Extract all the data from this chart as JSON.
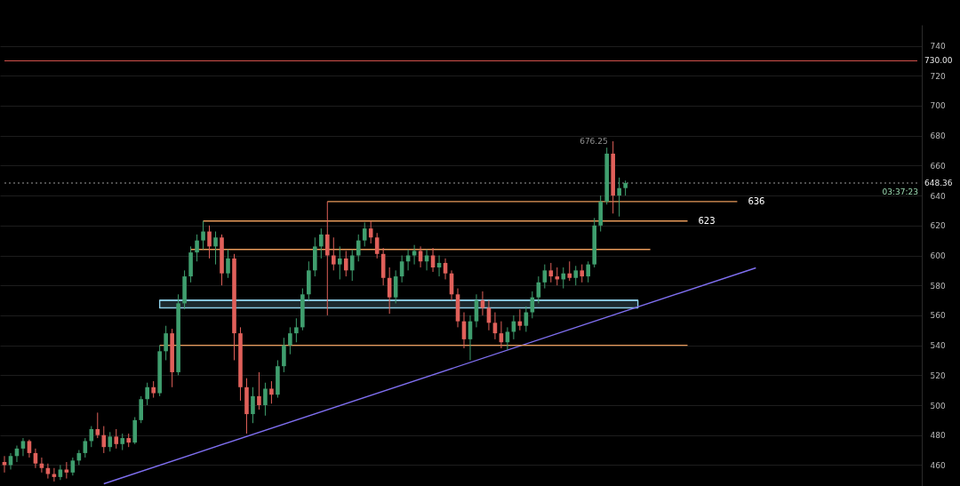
{
  "chart_data": {
    "type": "candlestick",
    "categories": [
      null,
      null,
      null,
      null,
      null,
      null,
      null,
      null,
      null,
      null,
      null,
      null,
      null,
      null,
      null,
      null,
      null,
      null,
      null,
      null,
      null,
      null,
      null,
      null,
      null,
      null,
      null,
      null,
      null,
      null,
      null,
      null,
      null,
      null,
      null,
      null,
      null,
      null,
      null,
      null,
      null,
      null,
      null,
      null,
      null,
      null,
      null,
      null,
      null,
      null,
      null,
      null,
      null,
      null,
      null,
      null,
      null,
      null,
      null,
      null,
      null,
      null,
      null,
      null,
      null,
      null,
      null,
      null,
      null,
      null,
      null,
      null,
      null,
      null,
      null,
      null,
      null,
      null,
      null,
      null,
      null,
      null,
      null,
      null,
      null,
      null,
      null,
      null,
      null,
      null,
      null,
      null,
      null,
      null,
      null,
      null,
      null,
      null,
      null,
      null,
      null,
      null,
      null,
      null,
      null,
      null,
      null,
      null,
      null,
      null,
      null,
      null,
      null,
      null,
      null,
      null,
      null,
      null,
      null,
      null,
      null,
      null,
      null,
      null,
      null,
      null,
      null,
      null,
      null,
      null,
      null,
      null,
      null,
      null,
      null,
      null,
      null,
      null,
      null,
      null,
      null,
      null,
      null,
      null,
      null,
      null,
      null,
      null
    ],
    "ohlc": [
      [
        462,
        466,
        455,
        460
      ],
      [
        460,
        468,
        457,
        466
      ],
      [
        466,
        473,
        462,
        471
      ],
      [
        471,
        478,
        466,
        476
      ],
      [
        476,
        477,
        465,
        468
      ],
      [
        468,
        471,
        458,
        461
      ],
      [
        461,
        465,
        455,
        458
      ],
      [
        458,
        461,
        451,
        454
      ],
      [
        454,
        458,
        449,
        452
      ],
      [
        452,
        460,
        450,
        457
      ],
      [
        457,
        462,
        451,
        455
      ],
      [
        455,
        465,
        453,
        463
      ],
      [
        463,
        470,
        460,
        468
      ],
      [
        468,
        478,
        465,
        476
      ],
      [
        476,
        486,
        472,
        484
      ],
      [
        484,
        495,
        478,
        480
      ],
      [
        480,
        486,
        468,
        472
      ],
      [
        472,
        482,
        469,
        479
      ],
      [
        479,
        484,
        471,
        474
      ],
      [
        474,
        481,
        470,
        478
      ],
      [
        478,
        481,
        472,
        475
      ],
      [
        475,
        492,
        474,
        490
      ],
      [
        490,
        506,
        488,
        504
      ],
      [
        504,
        515,
        500,
        512
      ],
      [
        512,
        516,
        505,
        508
      ],
      [
        508,
        540,
        506,
        536
      ],
      [
        536,
        553,
        530,
        548
      ],
      [
        548,
        551,
        512,
        522
      ],
      [
        522,
        574,
        520,
        568
      ],
      [
        568,
        590,
        564,
        586
      ],
      [
        586,
        606,
        582,
        602
      ],
      [
        602,
        614,
        596,
        610
      ],
      [
        610,
        623,
        604,
        616
      ],
      [
        616,
        620,
        598,
        606
      ],
      [
        606,
        616,
        594,
        612
      ],
      [
        612,
        614,
        580,
        588
      ],
      [
        588,
        604,
        585,
        598
      ],
      [
        598,
        601,
        530,
        548
      ],
      [
        548,
        552,
        503,
        512
      ],
      [
        512,
        518,
        481,
        494
      ],
      [
        494,
        512,
        488,
        506
      ],
      [
        506,
        522,
        497,
        500
      ],
      [
        500,
        515,
        493,
        511
      ],
      [
        511,
        516,
        501,
        507
      ],
      [
        507,
        530,
        505,
        526
      ],
      [
        526,
        545,
        522,
        540
      ],
      [
        540,
        552,
        534,
        548
      ],
      [
        548,
        558,
        542,
        552
      ],
      [
        552,
        578,
        550,
        574
      ],
      [
        574,
        596,
        570,
        590
      ],
      [
        590,
        612,
        586,
        606
      ],
      [
        606,
        618,
        598,
        614
      ],
      [
        614,
        636,
        560,
        600
      ],
      [
        600,
        612,
        590,
        594
      ],
      [
        594,
        606,
        584,
        598
      ],
      [
        598,
        603,
        586,
        590
      ],
      [
        590,
        604,
        583,
        600
      ],
      [
        600,
        614,
        596,
        610
      ],
      [
        610,
        622,
        606,
        618
      ],
      [
        618,
        623,
        608,
        612
      ],
      [
        612,
        615,
        598,
        601
      ],
      [
        601,
        605,
        580,
        585
      ],
      [
        585,
        592,
        561,
        572
      ],
      [
        572,
        590,
        568,
        586
      ],
      [
        586,
        600,
        582,
        596
      ],
      [
        596,
        604,
        590,
        600
      ],
      [
        600,
        607,
        594,
        603
      ],
      [
        603,
        606,
        592,
        596
      ],
      [
        596,
        604,
        590,
        600
      ],
      [
        600,
        605,
        589,
        592
      ],
      [
        592,
        600,
        586,
        595
      ],
      [
        595,
        598,
        584,
        588
      ],
      [
        588,
        590,
        570,
        574
      ],
      [
        574,
        578,
        552,
        556
      ],
      [
        556,
        562,
        538,
        544
      ],
      [
        544,
        560,
        530,
        556
      ],
      [
        556,
        574,
        552,
        570
      ],
      [
        570,
        576,
        560,
        565
      ],
      [
        565,
        570,
        550,
        555
      ],
      [
        555,
        562,
        544,
        548
      ],
      [
        548,
        556,
        538,
        542
      ],
      [
        542,
        552,
        537,
        549
      ],
      [
        549,
        560,
        544,
        556
      ],
      [
        556,
        564,
        550,
        553
      ],
      [
        553,
        566,
        549,
        562
      ],
      [
        562,
        576,
        558,
        572
      ],
      [
        572,
        586,
        568,
        582
      ],
      [
        582,
        594,
        578,
        590
      ],
      [
        590,
        595,
        582,
        586
      ],
      [
        586,
        592,
        580,
        584
      ],
      [
        584,
        592,
        578,
        588
      ],
      [
        588,
        596,
        583,
        585
      ],
      [
        585,
        593,
        580,
        590
      ],
      [
        590,
        594,
        582,
        586
      ],
      [
        586,
        596,
        582,
        594
      ],
      [
        594,
        625,
        592,
        620
      ],
      [
        620,
        640,
        616,
        636
      ],
      [
        636,
        672,
        634,
        668
      ],
      [
        668,
        676.25,
        628,
        640
      ],
      [
        640,
        652,
        626,
        645
      ],
      [
        645,
        650,
        640,
        648.36
      ],
      null,
      null,
      null,
      null,
      null,
      null,
      null,
      null,
      null,
      null,
      null,
      null,
      null,
      null,
      null,
      null,
      null,
      null,
      null,
      null,
      null,
      null,
      null,
      null,
      null,
      null,
      null,
      null,
      null,
      null,
      null,
      null,
      null,
      null,
      null,
      null,
      null,
      null,
      null,
      null,
      null,
      null,
      null,
      null,
      null,
      null,
      null
    ],
    "colors": [
      "#e0605a",
      "#3f9e6e",
      "#3f9e6e",
      "#3f9e6e",
      "#e0605a",
      "#e0605a",
      "#e0605a",
      "#e0605a",
      "#e0605a",
      "#3f9e6e",
      "#e0605a",
      "#3f9e6e",
      "#3f9e6e",
      "#3f9e6e",
      "#3f9e6e",
      "#e0605a",
      "#e0605a",
      "#3f9e6e",
      "#e0605a",
      "#3f9e6e",
      "#e0605a",
      "#3f9e6e",
      "#3f9e6e",
      "#3f9e6e",
      "#e0605a",
      "#3f9e6e",
      "#3f9e6e",
      "#e0605a",
      "#3f9e6e",
      "#3f9e6e",
      "#3f9e6e",
      "#3f9e6e",
      "#3f9e6e",
      "#e0605a",
      "#3f9e6e",
      "#e0605a",
      "#3f9e6e",
      "#e0605a",
      "#e0605a",
      "#e0605a",
      "#3f9e6e",
      "#e0605a",
      "#3f9e6e",
      "#e0605a",
      "#3f9e6e",
      "#3f9e6e",
      "#3f9e6e",
      "#3f9e6e",
      "#3f9e6e",
      "#3f9e6e",
      "#3f9e6e",
      "#3f9e6e",
      "#e0605a",
      "#e0605a",
      "#3f9e6e",
      "#e0605a",
      "#3f9e6e",
      "#3f9e6e",
      "#3f9e6e",
      "#e0605a",
      "#e0605a",
      "#e0605a",
      "#e0605a",
      "#3f9e6e",
      "#3f9e6e",
      "#3f9e6e",
      "#3f9e6e",
      "#e0605a",
      "#3f9e6e",
      "#e0605a",
      "#3f9e6e",
      "#e0605a",
      "#e0605a",
      "#e0605a",
      "#e0605a",
      "#3f9e6e",
      "#3f9e6e",
      "#e0605a",
      "#e0605a",
      "#e0605a",
      "#e0605a",
      "#3f9e6e",
      "#3f9e6e",
      "#e0605a",
      "#3f9e6e",
      "#3f9e6e",
      "#3f9e6e",
      "#3f9e6e",
      "#e0605a",
      "#e0605a",
      "#3f9e6e",
      "#e0605a",
      "#3f9e6e",
      "#e0605a",
      "#3f9e6e",
      "#3f9e6e",
      "#3f9e6e",
      "#3f9e6e",
      "#e0605a",
      "#3f9e6e",
      "#3f9e6e",
      null,
      null,
      null,
      null,
      null,
      null,
      null,
      null,
      null,
      null,
      null,
      null,
      null,
      null,
      null,
      null,
      null,
      null,
      null,
      null,
      null,
      null,
      null,
      null,
      null,
      null,
      null,
      null,
      null,
      null,
      null,
      null,
      null,
      null,
      null,
      null,
      null,
      null,
      null,
      null,
      null,
      null,
      null,
      null,
      null,
      null,
      null
    ],
    "series": [
      {
        "type": "line",
        "color": "#8ecfe8",
        "values": [
          null,
          null,
          null,
          null,
          null,
          null,
          null,
          null,
          null,
          null,
          null,
          null,
          null,
          null,
          null,
          null,
          null,
          null,
          null,
          null,
          null,
          null,
          null,
          null,
          null,
          570,
          null,
          null,
          null,
          null,
          null,
          null,
          null,
          null,
          null,
          null,
          null,
          null,
          null,
          null,
          null,
          null,
          null,
          null,
          null,
          null,
          null,
          null,
          null,
          null,
          null,
          null,
          null,
          null,
          null,
          null,
          null,
          null,
          null,
          null,
          null,
          null,
          null,
          null,
          null,
          null,
          null,
          null,
          null,
          null,
          null,
          null,
          null,
          null,
          null,
          null,
          null,
          null,
          null,
          null,
          null,
          null,
          null,
          null,
          null,
          null,
          null,
          null,
          null,
          null,
          null,
          null,
          null,
          null,
          null,
          null,
          null,
          null,
          null,
          null,
          null,
          null,
          570,
          null,
          null,
          null,
          null,
          null,
          null,
          null,
          null,
          null,
          null,
          null,
          null,
          null,
          null,
          null,
          null,
          null,
          null,
          null,
          null,
          null,
          null,
          null,
          null,
          null,
          null,
          null,
          null,
          null,
          null,
          null,
          null,
          null,
          null,
          null,
          null,
          null,
          null,
          null,
          null,
          null,
          null,
          null,
          null,
          null
        ],
        "lower": [
          null,
          null,
          null,
          null,
          null,
          null,
          null,
          null,
          null,
          null,
          null,
          null,
          null,
          null,
          null,
          null,
          null,
          null,
          null,
          null,
          null,
          null,
          null,
          null,
          null,
          565,
          null,
          null,
          null,
          null,
          null,
          null,
          null,
          null,
          null,
          null,
          null,
          null,
          null,
          null,
          null,
          null,
          null,
          null,
          null,
          null,
          null,
          null,
          null,
          null,
          null,
          null,
          null,
          null,
          null,
          null,
          null,
          null,
          null,
          null,
          null,
          null,
          null,
          null,
          null,
          null,
          null,
          null,
          null,
          null,
          null,
          null,
          null,
          null,
          null,
          null,
          null,
          null,
          null,
          null,
          null,
          null,
          null,
          null,
          null,
          null,
          null,
          null,
          null,
          null,
          null,
          null,
          null,
          null,
          null,
          null,
          null,
          null,
          null,
          null,
          null,
          null,
          565,
          null,
          null,
          null,
          null,
          null,
          null,
          null,
          null,
          null,
          null,
          null,
          null,
          null,
          null,
          null,
          null,
          null,
          null,
          null,
          null,
          null,
          null,
          null,
          null,
          null,
          null,
          null,
          null,
          null,
          null,
          null,
          null,
          null,
          null,
          null,
          null,
          null,
          null,
          null,
          null,
          null,
          null,
          null,
          null,
          null
        ],
        "upper": [
          null,
          null,
          null,
          null,
          null,
          null,
          null,
          null,
          null,
          null,
          null,
          null,
          null,
          null,
          null,
          null,
          null,
          null,
          null,
          null,
          null,
          null,
          null,
          null,
          null,
          570,
          null,
          null,
          null,
          null,
          null,
          null,
          null,
          null,
          null,
          null,
          null,
          null,
          null,
          null,
          null,
          null,
          null,
          null,
          null,
          null,
          null,
          null,
          null,
          null,
          null,
          null,
          null,
          null,
          null,
          null,
          null,
          null,
          null,
          null,
          null,
          null,
          null,
          null,
          null,
          null,
          null,
          null,
          null,
          null,
          null,
          null,
          null,
          null,
          null,
          null,
          null,
          null,
          null,
          null,
          null,
          null,
          null,
          null,
          null,
          null,
          null,
          null,
          null,
          null,
          null,
          null,
          null,
          null,
          null,
          null,
          null,
          null,
          null,
          null,
          null,
          null,
          570,
          null,
          null,
          null,
          null,
          null,
          null,
          null,
          null,
          null,
          null,
          null,
          null,
          null,
          null,
          null,
          null,
          null,
          null,
          null,
          null,
          null,
          null,
          null,
          null,
          null,
          null,
          null,
          null,
          null,
          null,
          null,
          null,
          null,
          null,
          null,
          null,
          null,
          null,
          null,
          null,
          null,
          null,
          null,
          null,
          null
        ]
      },
      {
        "type": "line",
        "color": "#7f6ff0",
        "values": [
          null,
          null,
          null,
          null,
          null,
          null,
          null,
          null,
          null,
          null,
          null,
          null,
          null,
          null,
          null,
          null,
          447.5,
          null,
          null,
          null,
          null,
          null,
          null,
          null,
          null,
          null,
          null,
          null,
          null,
          null,
          null,
          null,
          null,
          null,
          null,
          null,
          null,
          null,
          null,
          null,
          null,
          null,
          null,
          null,
          null,
          null,
          null,
          null,
          null,
          null,
          null,
          null,
          null,
          null,
          null,
          null,
          null,
          null,
          null,
          null,
          null,
          null,
          null,
          null,
          null,
          null,
          null,
          null,
          null,
          null,
          null,
          null,
          null,
          null,
          null,
          null,
          null,
          null,
          null,
          null,
          null,
          null,
          null,
          null,
          null,
          null,
          null,
          null,
          null,
          null,
          null,
          null,
          null,
          null,
          null,
          null,
          null,
          null,
          null,
          null,
          null,
          null,
          null,
          null,
          null,
          null,
          null,
          null,
          null,
          null,
          null,
          null,
          null,
          null,
          null,
          null,
          null,
          null,
          null,
          null,
          null,
          591.7,
          null,
          null,
          null,
          null,
          null,
          null,
          null,
          null,
          null,
          null,
          null,
          null,
          null,
          null,
          null,
          null,
          null,
          null,
          null,
          null,
          null,
          null,
          null,
          null,
          null,
          null
        ]
      },
      {
        "type": "line",
        "color": "#e89a5a",
        "name": "636",
        "values": [
          null,
          null,
          null,
          null,
          null,
          null,
          null,
          null,
          null,
          null,
          null,
          null,
          null,
          null,
          null,
          null,
          null,
          null,
          null,
          null,
          null,
          null,
          null,
          null,
          null,
          null,
          null,
          null,
          null,
          null,
          null,
          null,
          null,
          null,
          null,
          null,
          null,
          null,
          null,
          null,
          null,
          null,
          null,
          null,
          null,
          null,
          null,
          null,
          null,
          null,
          null,
          null,
          636,
          null,
          null,
          null,
          null,
          null,
          null,
          null,
          null,
          null,
          null,
          null,
          null,
          null,
          null,
          null,
          null,
          null,
          null,
          null,
          null,
          null,
          null,
          null,
          null,
          null,
          null,
          null,
          null,
          null,
          null,
          null,
          null,
          null,
          null,
          null,
          null,
          null,
          null,
          null,
          null,
          null,
          null,
          null,
          null,
          null,
          null,
          null,
          null,
          null,
          null,
          null,
          null,
          null,
          null,
          null,
          null,
          null,
          null,
          null,
          null,
          null,
          null,
          null,
          null,
          null,
          636,
          null,
          null,
          null,
          null,
          null,
          null,
          null,
          null,
          null,
          null,
          null,
          null,
          null,
          null,
          null,
          null,
          null,
          null,
          null,
          null,
          null,
          null,
          null,
          null,
          null,
          null,
          null,
          null,
          null
        ]
      },
      {
        "type": "line",
        "color": "#e89a5a",
        "name": "623",
        "values": [
          null,
          null,
          null,
          null,
          null,
          null,
          null,
          null,
          null,
          null,
          null,
          null,
          null,
          null,
          null,
          null,
          null,
          null,
          null,
          null,
          null,
          null,
          null,
          null,
          null,
          null,
          null,
          null,
          null,
          null,
          null,
          null,
          623,
          null,
          null,
          null,
          null,
          null,
          null,
          null,
          null,
          null,
          null,
          null,
          null,
          null,
          null,
          null,
          null,
          null,
          null,
          null,
          null,
          null,
          null,
          null,
          null,
          null,
          null,
          null,
          null,
          null,
          null,
          null,
          null,
          null,
          null,
          null,
          null,
          null,
          null,
          null,
          null,
          null,
          null,
          null,
          null,
          null,
          null,
          null,
          null,
          null,
          null,
          null,
          null,
          null,
          null,
          null,
          null,
          null,
          null,
          null,
          null,
          null,
          null,
          null,
          null,
          null,
          null,
          null,
          null,
          null,
          null,
          null,
          null,
          null,
          null,
          null,
          null,
          null,
          623,
          null,
          null,
          null,
          null,
          null,
          null,
          null,
          null,
          null,
          null,
          null,
          null,
          null,
          null,
          null,
          null,
          null,
          null,
          null,
          null,
          null,
          null,
          null,
          null,
          null,
          null,
          null,
          null,
          null,
          null,
          null,
          null,
          null,
          null,
          null,
          null,
          null
        ]
      },
      {
        "type": "line",
        "color": "#e89a5a",
        "values": [
          null,
          null,
          null,
          null,
          null,
          null,
          null,
          null,
          null,
          null,
          null,
          null,
          null,
          null,
          null,
          null,
          null,
          null,
          null,
          null,
          null,
          null,
          null,
          null,
          null,
          null,
          null,
          null,
          null,
          null,
          604,
          null,
          null,
          null,
          null,
          null,
          null,
          null,
          null,
          null,
          null,
          null,
          null,
          null,
          null,
          null,
          null,
          null,
          null,
          null,
          null,
          null,
          null,
          null,
          null,
          null,
          null,
          null,
          null,
          null,
          null,
          null,
          null,
          null,
          null,
          null,
          null,
          null,
          null,
          null,
          null,
          null,
          null,
          null,
          null,
          null,
          null,
          null,
          null,
          null,
          null,
          null,
          null,
          null,
          null,
          null,
          null,
          null,
          null,
          null,
          null,
          null,
          null,
          null,
          null,
          null,
          null,
          null,
          null,
          null,
          null,
          null,
          null,
          null,
          604,
          null,
          null,
          null,
          null,
          null,
          null,
          null,
          null,
          null,
          null,
          null,
          null,
          null,
          null,
          null,
          null,
          null,
          null,
          null,
          null,
          null,
          null,
          null,
          null,
          null,
          null,
          null,
          null,
          null,
          null,
          null,
          null,
          null,
          null,
          null,
          null,
          null,
          null,
          null,
          null,
          null,
          null,
          null
        ]
      },
      {
        "type": "line",
        "color": "#e89a5a",
        "values": [
          null,
          null,
          null,
          null,
          null,
          null,
          null,
          null,
          null,
          null,
          null,
          null,
          null,
          null,
          null,
          null,
          null,
          null,
          null,
          null,
          null,
          null,
          null,
          null,
          null,
          540,
          null,
          null,
          null,
          null,
          null,
          null,
          null,
          null,
          null,
          null,
          null,
          null,
          null,
          null,
          null,
          null,
          null,
          null,
          null,
          null,
          null,
          null,
          null,
          null,
          null,
          null,
          null,
          null,
          null,
          null,
          null,
          null,
          null,
          null,
          null,
          null,
          null,
          null,
          null,
          null,
          null,
          null,
          null,
          null,
          null,
          null,
          null,
          null,
          null,
          null,
          null,
          null,
          null,
          null,
          null,
          null,
          null,
          null,
          null,
          null,
          null,
          null,
          null,
          null,
          null,
          null,
          null,
          null,
          null,
          null,
          null,
          null,
          null,
          null,
          null,
          null,
          null,
          null,
          null,
          null,
          null,
          null,
          null,
          null,
          540,
          null,
          null,
          null,
          null,
          null,
          null,
          null,
          null,
          null,
          null,
          null,
          null,
          null,
          null,
          null,
          null,
          null,
          null,
          null,
          null,
          null,
          null,
          null,
          null,
          null,
          null,
          null,
          null,
          null,
          null,
          null,
          null,
          null,
          null,
          null,
          null,
          null
        ]
      }
    ],
    "ref_lines": [
      {
        "axis": "y",
        "value": 730,
        "label": "730.00",
        "color": "#d9534f"
      },
      {
        "axis": "y",
        "value": 648.36,
        "label": "648.36",
        "color": "#9a9a9a",
        "line_style": "dotted"
      }
    ],
    "annotations": [
      "03:37:23",
      "676.25"
    ],
    "ylim": [
      446,
      754
    ],
    "yticks": [
      460,
      480,
      500,
      520,
      540,
      560,
      580,
      600,
      620,
      640,
      660,
      680,
      700,
      720,
      740
    ],
    "grid": "y",
    "tick_labels": "y"
  }
}
